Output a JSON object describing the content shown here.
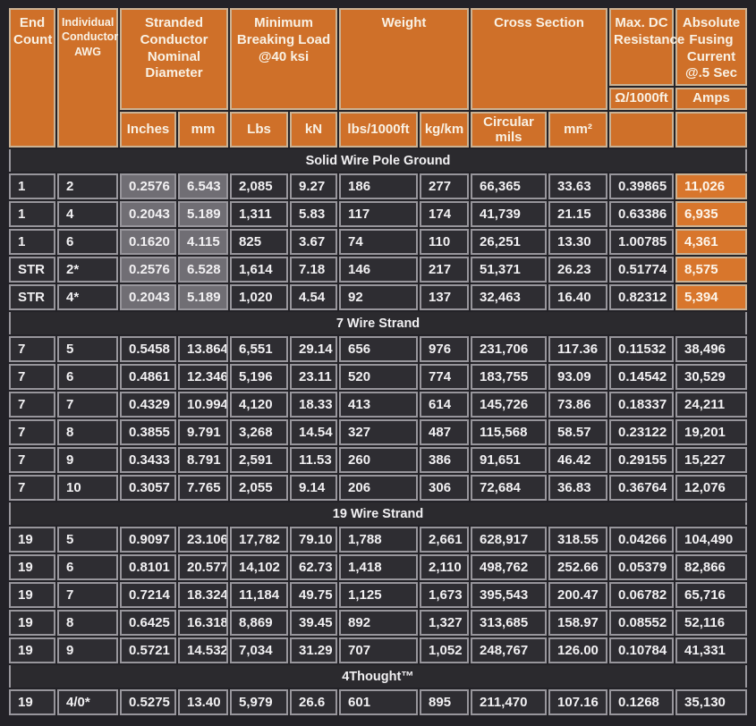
{
  "colors": {
    "page_bg": "#232227",
    "cell_bg": "#2e2d32",
    "band_bg": "#2b2a2e",
    "header_orange": "#cf7029",
    "amps_orange": "#d8762c",
    "gray_cell": "#706e74",
    "border_data": "#98969c",
    "border_header": "#cbb294",
    "text": "#f2f1f3",
    "header_text": "#f9f1e4"
  },
  "chart_data": {
    "type": "table",
    "header": {
      "end_count": "End Count",
      "awg": "Individual Conductor AWG",
      "groups": [
        {
          "label": "Stranded Conductor Nominal Diameter",
          "units": [
            "Inches",
            "mm"
          ]
        },
        {
          "label": "Minimum Breaking Load @40 ksi",
          "units": [
            "Lbs",
            "kN"
          ]
        },
        {
          "label": "Weight",
          "units": [
            "lbs/1000ft",
            "kg/km"
          ]
        },
        {
          "label": "Cross Section",
          "units": [
            "Circular mils",
            "mm²"
          ]
        }
      ],
      "max_dc_resistance": {
        "label": "Max. DC Resistance",
        "unit": "Ω/1000ft"
      },
      "absolute_fusing": {
        "label": "Absolute Fusing Current @.5 Sec",
        "unit": "Amps"
      }
    },
    "columns": [
      "End Count",
      "Individual Conductor AWG",
      "Inches",
      "mm",
      "Lbs",
      "kN",
      "lbs/1000ft",
      "kg/km",
      "Circular mils",
      "mm²",
      "Ω/1000ft",
      "Amps"
    ],
    "sections": [
      {
        "title": "Solid Wire Pole Ground",
        "gray_cols": [
          2,
          3
        ],
        "orange_cols": [
          11
        ],
        "rows": [
          [
            "1",
            "2",
            "0.2576",
            "6.543",
            "2,085",
            "9.27",
            "186",
            "277",
            "66,365",
            "33.63",
            "0.39865",
            "11,026"
          ],
          [
            "1",
            "4",
            "0.2043",
            "5.189",
            "1,311",
            "5.83",
            "117",
            "174",
            "41,739",
            "21.15",
            "0.63386",
            "6,935"
          ],
          [
            "1",
            "6",
            "0.1620",
            "4.115",
            "825",
            "3.67",
            "74",
            "110",
            "26,251",
            "13.30",
            "1.00785",
            "4,361"
          ],
          [
            "STR",
            "2*",
            "0.2576",
            "6.528",
            "1,614",
            "7.18",
            "146",
            "217",
            "51,371",
            "26.23",
            "0.51774",
            "8,575"
          ],
          [
            "STR",
            "4*",
            "0.2043",
            "5.189",
            "1,020",
            "4.54",
            "92",
            "137",
            "32,463",
            "16.40",
            "0.82312",
            "5,394"
          ]
        ]
      },
      {
        "title": "7 Wire Strand",
        "gray_cols": [],
        "orange_cols": [],
        "rows": [
          [
            "7",
            "5",
            "0.5458",
            "13.864",
            "6,551",
            "29.14",
            "656",
            "976",
            "231,706",
            "117.36",
            "0.11532",
            "38,496"
          ],
          [
            "7",
            "6",
            "0.4861",
            "12.346",
            "5,196",
            "23.11",
            "520",
            "774",
            "183,755",
            "93.09",
            "0.14542",
            "30,529"
          ],
          [
            "7",
            "7",
            "0.4329",
            "10.994",
            "4,120",
            "18.33",
            "413",
            "614",
            "145,726",
            "73.86",
            "0.18337",
            "24,211"
          ],
          [
            "7",
            "8",
            "0.3855",
            "9.791",
            "3,268",
            "14.54",
            "327",
            "487",
            "115,568",
            "58.57",
            "0.23122",
            "19,201"
          ],
          [
            "7",
            "9",
            "0.3433",
            "8.791",
            "2,591",
            "11.53",
            "260",
            "386",
            "91,651",
            "46.42",
            "0.29155",
            "15,227"
          ],
          [
            "7",
            "10",
            "0.3057",
            "7.765",
            "2,055",
            "9.14",
            "206",
            "306",
            "72,684",
            "36.83",
            "0.36764",
            "12,076"
          ]
        ]
      },
      {
        "title": "19 Wire Strand",
        "gray_cols": [],
        "orange_cols": [],
        "rows": [
          [
            "19",
            "5",
            "0.9097",
            "23.106",
            "17,782",
            "79.10",
            "1,788",
            "2,661",
            "628,917",
            "318.55",
            "0.04266",
            "104,490"
          ],
          [
            "19",
            "6",
            "0.8101",
            "20.577",
            "14,102",
            "62.73",
            "1,418",
            "2,110",
            "498,762",
            "252.66",
            "0.05379",
            "82,866"
          ],
          [
            "19",
            "7",
            "0.7214",
            "18.324",
            "11,184",
            "49.75",
            "1,125",
            "1,673",
            "395,543",
            "200.47",
            "0.06782",
            "65,716"
          ],
          [
            "19",
            "8",
            "0.6425",
            "16.318",
            "8,869",
            "39.45",
            "892",
            "1,327",
            "313,685",
            "158.97",
            "0.08552",
            "52,116"
          ],
          [
            "19",
            "9",
            "0.5721",
            "14.532",
            "7,034",
            "31.29",
            "707",
            "1,052",
            "248,767",
            "126.00",
            "0.10784",
            "41,331"
          ]
        ]
      },
      {
        "title": "4Thought™",
        "gray_cols": [],
        "orange_cols": [],
        "rows": [
          [
            "19",
            "4/0*",
            "0.5275",
            "13.40",
            "5,979",
            "26.6",
            "601",
            "895",
            "211,470",
            "107.16",
            "0.1268",
            "35,130"
          ]
        ]
      }
    ]
  }
}
